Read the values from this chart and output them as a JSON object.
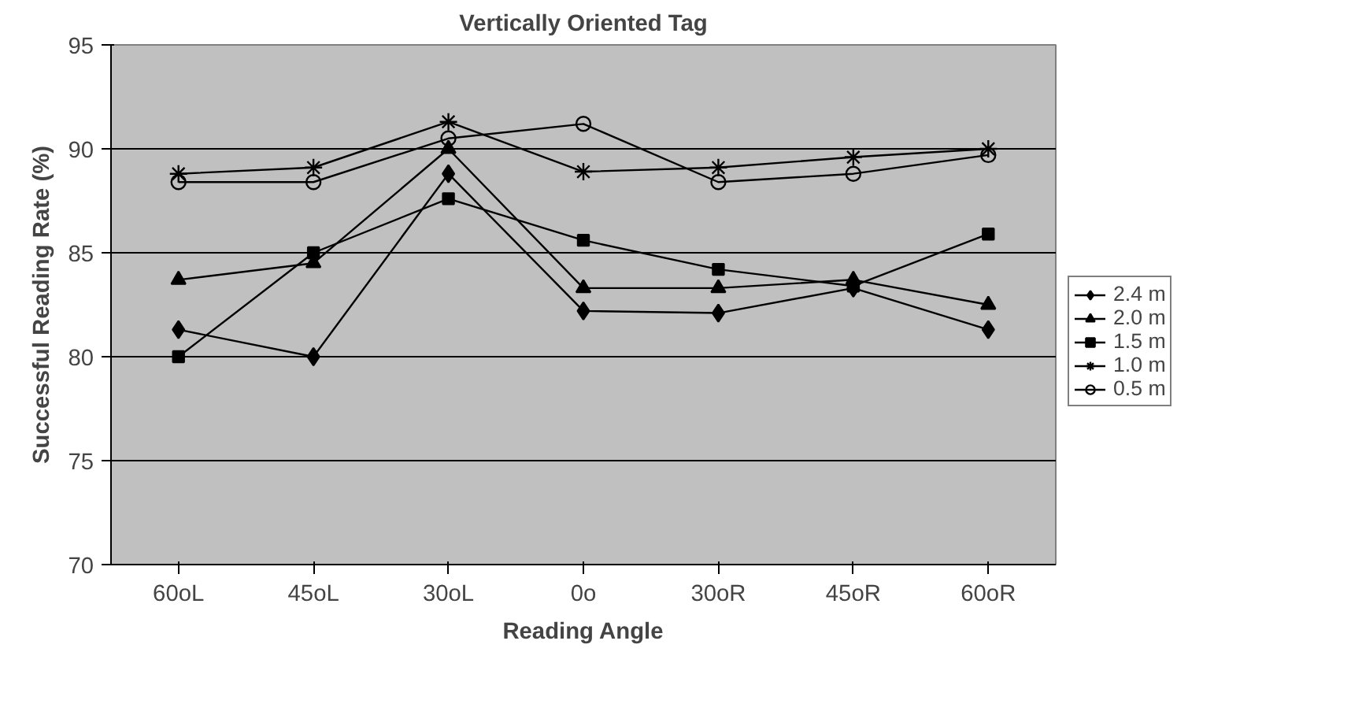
{
  "chart_data": {
    "type": "line",
    "title": "Vertically Oriented Tag",
    "xlabel": "Reading Angle",
    "ylabel": "Successful Reading Rate (%)",
    "categories": [
      "60oL",
      "45oL",
      "30oL",
      "0o",
      "30oR",
      "45oR",
      "60oR"
    ],
    "series": [
      {
        "name": "2.4 m",
        "color": "#000000",
        "marker": "diamond",
        "values": [
          81.3,
          80.0,
          88.8,
          82.2,
          82.1,
          83.3,
          81.3
        ]
      },
      {
        "name": "2.0 m",
        "color": "#000000",
        "marker": "triangle",
        "values": [
          83.7,
          84.5,
          90.0,
          83.3,
          83.3,
          83.7,
          82.5
        ]
      },
      {
        "name": "1.5 m",
        "color": "#000000",
        "marker": "square",
        "values": [
          80.0,
          85.0,
          87.6,
          85.6,
          84.2,
          83.4,
          85.9
        ]
      },
      {
        "name": "1.0 m",
        "color": "#000000",
        "marker": "cross",
        "values": [
          88.8,
          89.1,
          91.3,
          88.9,
          89.1,
          89.6,
          90.0
        ]
      },
      {
        "name": "0.5 m",
        "color": "#000000",
        "marker": "circle",
        "values": [
          88.4,
          88.4,
          90.5,
          91.2,
          88.4,
          88.8,
          89.7
        ]
      }
    ],
    "ylim": [
      70,
      95
    ],
    "yticks": [
      70,
      75,
      80,
      85,
      90,
      95
    ],
    "grid": "y",
    "legend": "right",
    "line_style": "solid"
  }
}
